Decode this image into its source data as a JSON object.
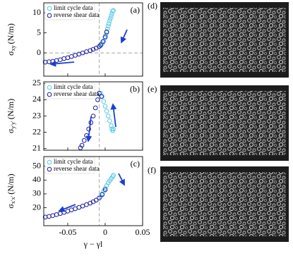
{
  "chart_data": [
    {
      "type": "scatter",
      "panel_label": "(a)",
      "ylabel": {
        "symbol": "σ",
        "sub": "xy",
        "unit": "(N/m)"
      },
      "xlim": [
        -0.082,
        0.05
      ],
      "ylim": [
        -5.8,
        12.5
      ],
      "xticks": [
        -0.05,
        0,
        0.05
      ],
      "yticks": [
        0,
        5,
        10
      ],
      "xtick_labels": false,
      "vline": -0.008,
      "hline": 0,
      "legend": "upper left",
      "series": [
        {
          "name": "limit cycle data",
          "color": "#5bc8e8",
          "x": [
            -0.006,
            -0.004,
            -0.002,
            0,
            0.001,
            0.002,
            0.003,
            0.004,
            0.005,
            0.006,
            0.007,
            0.008,
            0.009,
            0.01,
            0.011
          ],
          "values": [
            1.8,
            2.3,
            3,
            3.8,
            4.5,
            5.3,
            6,
            6.7,
            7.3,
            8,
            8.6,
            9.2,
            9.8,
            10.4,
            10.6
          ]
        },
        {
          "name": "reverse shear data",
          "color": "#1a1aa0",
          "x": [
            0.002,
            0,
            -0.003,
            -0.006,
            -0.008,
            -0.012,
            -0.016,
            -0.02,
            -0.025,
            -0.03,
            -0.035,
            -0.04,
            -0.045,
            -0.05,
            -0.055,
            -0.06,
            -0.065,
            -0.07,
            -0.075,
            -0.08
          ],
          "values": [
            5.2,
            4,
            2.8,
            2,
            1.6,
            1.2,
            0.9,
            0.6,
            0.3,
            0,
            -0.3,
            -0.6,
            -0.9,
            -1.2,
            -1.4,
            -1.7,
            -1.9,
            -2.1,
            -2.2,
            -2.3
          ]
        }
      ]
    },
    {
      "type": "scatter",
      "panel_label": "(b)",
      "ylabel": {
        "symbol": "σ",
        "sub": "y′y′",
        "unit": "(N/m)"
      },
      "xlim": [
        -0.082,
        0.05
      ],
      "ylim": [
        20.9,
        25.1
      ],
      "xticks": [
        -0.05,
        0,
        0.05
      ],
      "yticks": [
        21,
        22,
        23,
        24,
        25
      ],
      "xtick_labels": false,
      "vline": -0.008,
      "legend": "upper left",
      "series": [
        {
          "name": "limit cycle data",
          "color": "#5bc8e8",
          "x": [
            -0.006,
            -0.004,
            -0.002,
            0,
            0.002,
            0.004,
            0.006,
            0.008,
            0.009,
            0.01,
            0.011
          ],
          "values": [
            24.4,
            24.2,
            23.9,
            23.6,
            23.3,
            23,
            22.7,
            22.4,
            22.2,
            22.1,
            22.2
          ]
        },
        {
          "name": "reverse shear data",
          "color": "#1a1aa0",
          "x": [
            -0.005,
            -0.008,
            -0.01,
            -0.013,
            -0.016,
            -0.019,
            -0.022,
            -0.025,
            -0.028,
            -0.031,
            -0.033
          ],
          "values": [
            24.2,
            24.4,
            24,
            23.5,
            23,
            22.6,
            22.2,
            21.8,
            21.5,
            21.2,
            21.05
          ]
        }
      ]
    },
    {
      "type": "scatter",
      "panel_label": "(c)",
      "ylabel": {
        "symbol": "σ",
        "sub": "x′x′",
        "unit": "(N/m)"
      },
      "xlabel": "γ − γl",
      "xlim": [
        -0.082,
        0.05
      ],
      "ylim": [
        7,
        57
      ],
      "xticks": [
        -0.05,
        0,
        0.05
      ],
      "yticks": [
        20,
        30,
        40,
        50
      ],
      "xtick_labels": true,
      "vline": -0.008,
      "legend": "upper left",
      "series": [
        {
          "name": "limit cycle data",
          "color": "#5bc8e8",
          "x": [
            -0.006,
            -0.004,
            -0.002,
            0,
            0.002,
            0.004,
            0.006,
            0.008,
            0.01,
            0.011
          ],
          "values": [
            28,
            30,
            32,
            34,
            36,
            38,
            39.5,
            41,
            42.5,
            43.5
          ]
        },
        {
          "name": "reverse shear data",
          "color": "#1a1aa0",
          "x": [
            0,
            -0.004,
            -0.008,
            -0.012,
            -0.016,
            -0.02,
            -0.025,
            -0.03,
            -0.035,
            -0.04,
            -0.045,
            -0.05,
            -0.055,
            -0.06,
            -0.065,
            -0.07,
            -0.075,
            -0.08
          ],
          "values": [
            33,
            29.5,
            27,
            25.5,
            24.3,
            23.3,
            22.2,
            21.2,
            20.2,
            19.3,
            18.4,
            17.5,
            16.6,
            15.8,
            15,
            14.3,
            13.7,
            13.2
          ]
        }
      ]
    }
  ],
  "images": [
    {
      "label": "(d)"
    },
    {
      "label": "(e)"
    },
    {
      "label": "(f)"
    }
  ]
}
